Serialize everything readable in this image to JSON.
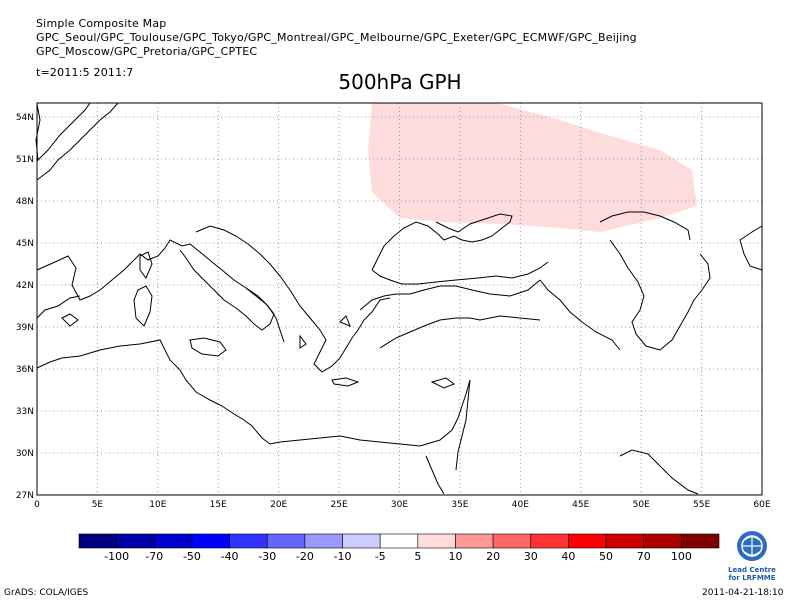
{
  "header": {
    "line1": "Simple Composite Map",
    "line2": "GPC_Seoul/GPC_Toulouse/GPC_Tokyo/GPC_Montreal/GPC_Melbourne/GPC_Exeter/GPC_ECMWF/GPC_Beijing",
    "line3": "GPC_Moscow/GPC_Pretoria/GPC_CPTEC",
    "time": "t=2011:5 2011:7"
  },
  "map": {
    "title": "500hPa GPH",
    "lon_range": [
      0,
      60
    ],
    "lat_range": [
      27,
      55
    ],
    "lat_ticks": [
      "27N",
      "30N",
      "33N",
      "36N",
      "39N",
      "42N",
      "45N",
      "48N",
      "51N",
      "54N"
    ],
    "lon_ticks": [
      "0",
      "5E",
      "10E",
      "15E",
      "20E",
      "25E",
      "30E",
      "35E",
      "40E",
      "45E",
      "50E",
      "55E",
      "60E"
    ],
    "grid": "dotted",
    "anomaly_region": {
      "label_value": "5 to 10",
      "color": "#ffdcdc"
    }
  },
  "colorbar": {
    "labels": [
      "-100",
      "-70",
      "-50",
      "-40",
      "-30",
      "-20",
      "-10",
      "-5",
      "5",
      "10",
      "20",
      "30",
      "40",
      "50",
      "70",
      "100"
    ],
    "colors": [
      "#00007f",
      "#0000aa",
      "#0000cc",
      "#0000ff",
      "#3333ff",
      "#6666ff",
      "#9999ff",
      "#ccccff",
      "#ffffff",
      "#ffdcdc",
      "#ff9999",
      "#ff6666",
      "#ff3333",
      "#ff0000",
      "#cc0000",
      "#aa0000",
      "#7f0000"
    ]
  },
  "footer": {
    "left": "GrADS: COLA/IGES",
    "right": "2011-04-21-18:10"
  },
  "logo": {
    "line1": "Lead Centre",
    "line2": "for LRFMME"
  }
}
